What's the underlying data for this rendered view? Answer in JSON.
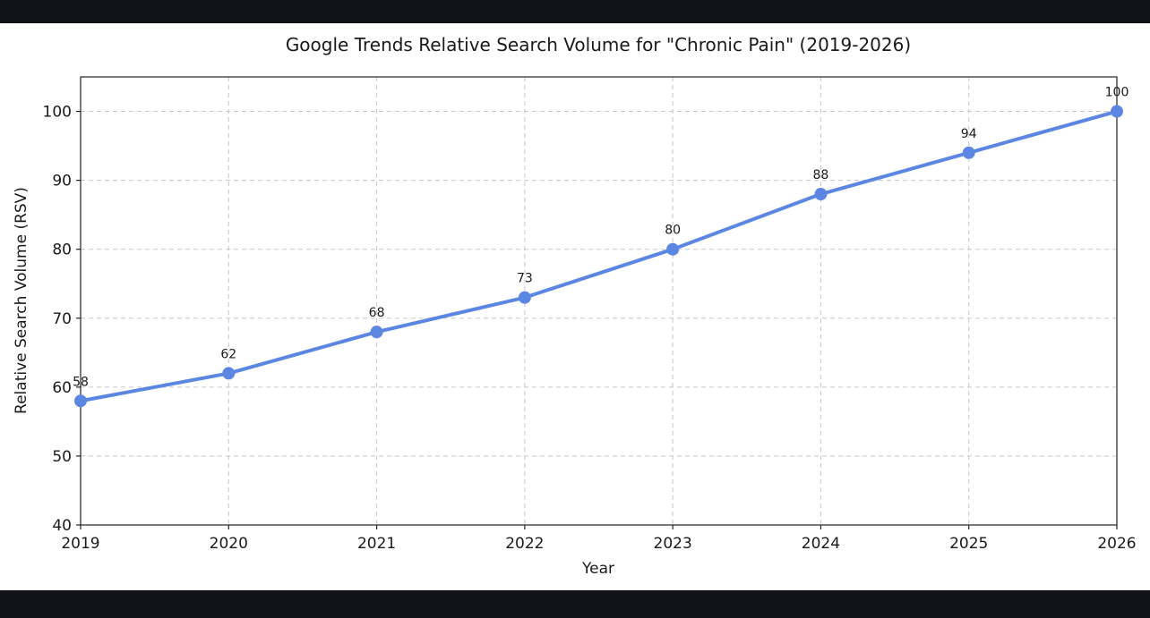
{
  "chart_data": {
    "type": "line",
    "title": "Google Trends Relative Search Volume for \"Chronic Pain\" (2019-2026)",
    "xlabel": "Year",
    "ylabel": "Relative Search Volume (RSV)",
    "x": [
      2019,
      2020,
      2021,
      2022,
      2023,
      2024,
      2025,
      2026
    ],
    "series": [
      {
        "values": [
          58,
          62,
          68,
          73,
          80,
          88,
          94,
          100
        ]
      }
    ],
    "xlim": [
      2019,
      2026
    ],
    "ylim": [
      40,
      105
    ],
    "yticks": [
      40,
      50,
      60,
      70,
      80,
      90,
      100
    ],
    "grid": true,
    "line_color": "#5b87e3",
    "data_labels": true
  }
}
